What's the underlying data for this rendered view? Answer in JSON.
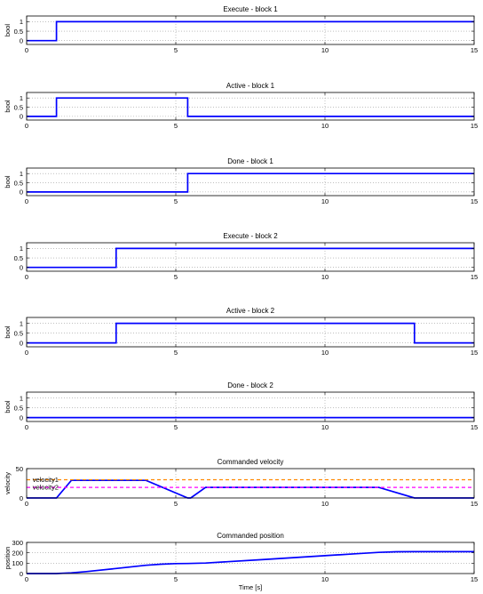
{
  "chart_data": [
    {
      "type": "line",
      "title": "Execute - block 1",
      "xlabel": "",
      "ylabel": "bool",
      "xlim": [
        0,
        15
      ],
      "ylim": [
        -0.2,
        1.3
      ],
      "grid": true,
      "xticks": [
        "0",
        "5",
        "10",
        "15"
      ],
      "yticks": [
        "0",
        "0.5",
        "1"
      ],
      "ytick_values": [
        0,
        0.5,
        1
      ],
      "series": [
        {
          "color": "#0000ff",
          "style": "solid",
          "x": [
            0,
            1,
            1,
            15
          ],
          "y": [
            0,
            0,
            1,
            1
          ]
        }
      ]
    },
    {
      "type": "line",
      "title": "Active - block 1",
      "xlabel": "",
      "ylabel": "bool",
      "xlim": [
        0,
        15
      ],
      "ylim": [
        -0.2,
        1.3
      ],
      "grid": true,
      "xticks": [
        "0",
        "5",
        "10",
        "15"
      ],
      "yticks": [
        "0",
        "0.5",
        "1"
      ],
      "ytick_values": [
        0,
        0.5,
        1
      ],
      "series": [
        {
          "color": "#0000ff",
          "style": "solid",
          "x": [
            0,
            1,
            1,
            5.4,
            5.4,
            15
          ],
          "y": [
            0,
            0,
            1,
            1,
            0,
            0
          ]
        }
      ]
    },
    {
      "type": "line",
      "title": "Done - block 1",
      "xlabel": "",
      "ylabel": "bool",
      "xlim": [
        0,
        15
      ],
      "ylim": [
        -0.2,
        1.3
      ],
      "grid": true,
      "xticks": [
        "0",
        "5",
        "10",
        "15"
      ],
      "yticks": [
        "0",
        "0.5",
        "1"
      ],
      "ytick_values": [
        0,
        0.5,
        1
      ],
      "series": [
        {
          "color": "#0000ff",
          "style": "solid",
          "x": [
            0,
            5.4,
            5.4,
            15
          ],
          "y": [
            0,
            0,
            1,
            1
          ]
        }
      ]
    },
    {
      "type": "line",
      "title": "Execute - block 2",
      "xlabel": "",
      "ylabel": "",
      "xlim": [
        0,
        15
      ],
      "ylim": [
        -0.2,
        1.3
      ],
      "grid": true,
      "xticks": [
        "0",
        "5",
        "10",
        "15"
      ],
      "yticks": [
        "0",
        "0.5",
        "1"
      ],
      "ytick_values": [
        0,
        0.5,
        1
      ],
      "series": [
        {
          "color": "#0000ff",
          "style": "solid",
          "x": [
            0,
            3,
            3,
            15
          ],
          "y": [
            0,
            0,
            1,
            1
          ]
        }
      ]
    },
    {
      "type": "line",
      "title": "Active - block 2",
      "xlabel": "",
      "ylabel": "bool",
      "xlim": [
        0,
        15
      ],
      "ylim": [
        -0.2,
        1.3
      ],
      "grid": true,
      "xticks": [
        "0",
        "5",
        "10",
        "15"
      ],
      "yticks": [
        "0",
        "0.5",
        "1"
      ],
      "ytick_values": [
        0,
        0.5,
        1
      ],
      "series": [
        {
          "color": "#0000ff",
          "style": "solid",
          "x": [
            0,
            3,
            3,
            13,
            13,
            15
          ],
          "y": [
            0,
            0,
            1,
            1,
            0,
            0
          ]
        }
      ]
    },
    {
      "type": "line",
      "title": "Done - block 2",
      "xlabel": "",
      "ylabel": "bool",
      "xlim": [
        0,
        15
      ],
      "ylim": [
        -0.2,
        1.3
      ],
      "grid": true,
      "xticks": [
        "0",
        "5",
        "10",
        "15"
      ],
      "yticks": [
        "0",
        "0.5",
        "1"
      ],
      "ytick_values": [
        0,
        0.5,
        1
      ],
      "series": [
        {
          "color": "#0000ff",
          "style": "solid",
          "x": [
            0,
            15
          ],
          "y": [
            0,
            0
          ]
        }
      ]
    },
    {
      "type": "line",
      "title": "Commanded velocity",
      "xlabel": "",
      "ylabel": "velocity",
      "xlim": [
        0,
        15
      ],
      "ylim": [
        0,
        50
      ],
      "grid": true,
      "xticks": [
        "0",
        "5",
        "10",
        "15"
      ],
      "yticks": [
        "0",
        "50"
      ],
      "ytick_values": [
        0,
        50
      ],
      "series": [
        {
          "color": "#0000ff",
          "style": "solid",
          "x": [
            0,
            1,
            1.5,
            4,
            5.4,
            5.5,
            6,
            11.8,
            13,
            15
          ],
          "y": [
            0,
            0,
            30,
            30,
            0,
            0,
            18,
            18,
            0,
            0
          ]
        },
        {
          "name": "velocity1",
          "color": "#ff8800",
          "style": "dashed",
          "x": [
            0,
            15
          ],
          "y": [
            31,
            31
          ]
        },
        {
          "name": "velocity2",
          "color": "#ff00ff",
          "style": "dashed",
          "x": [
            0,
            15
          ],
          "y": [
            18,
            18
          ]
        }
      ],
      "labels": [
        {
          "text": "velocity1",
          "x": 0.2,
          "y": 31
        },
        {
          "text": "velocity2",
          "x": 0.2,
          "y": 18
        }
      ]
    },
    {
      "type": "line",
      "title": "Commanded position",
      "xlabel": "Time [s]",
      "ylabel": "position",
      "xlim": [
        0,
        15
      ],
      "ylim": [
        0,
        300
      ],
      "grid": true,
      "xticks": [
        "0",
        "5",
        "10",
        "15"
      ],
      "yticks": [
        "0",
        "100",
        "200",
        "300"
      ],
      "ytick_values": [
        0,
        100,
        200,
        300
      ],
      "series": [
        {
          "color": "#0000ff",
          "style": "solid",
          "x": [
            0,
            1,
            1.5,
            2,
            3,
            4,
            4.5,
            5,
            5.4,
            6,
            8,
            10,
            11,
            11.8,
            12.4,
            13,
            15
          ],
          "y": [
            0,
            0,
            7,
            19,
            49,
            80,
            90,
            96,
            97,
            101,
            136,
            172,
            190,
            204,
            210,
            211,
            211
          ]
        }
      ]
    }
  ]
}
